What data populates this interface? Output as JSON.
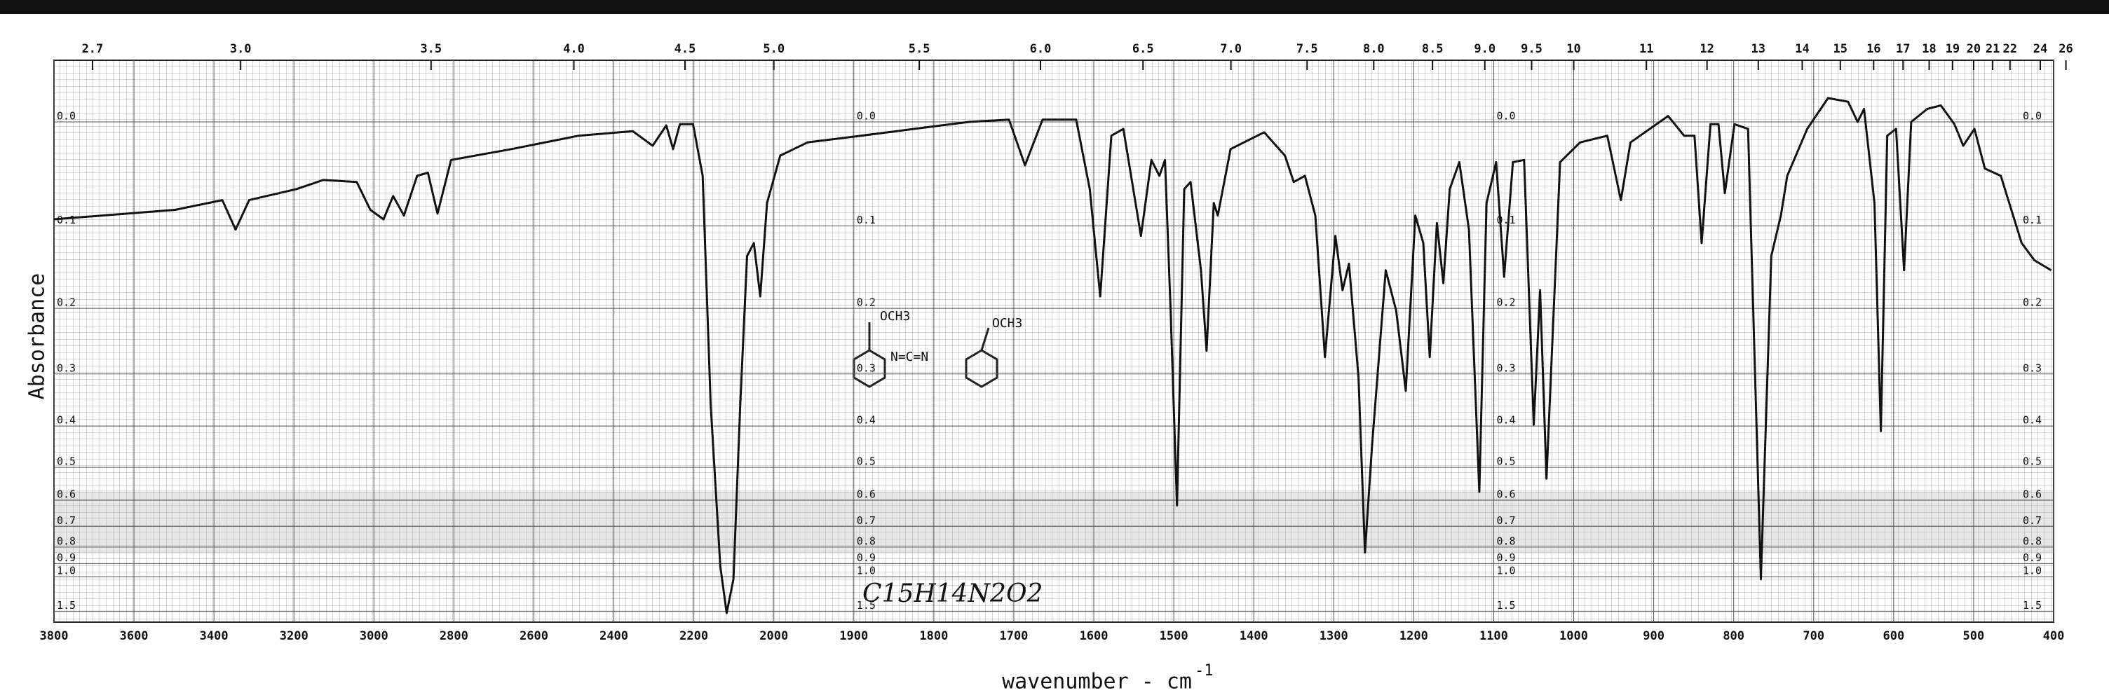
{
  "chart_data": {
    "type": "line",
    "y_label": "Absorbance",
    "x_label": "wavenumber - cm",
    "x_label_exponent": "-1",
    "annotation": "C15H14N2O2",
    "structure_labels": [
      "OCH3",
      "N=C=N",
      "OCH3"
    ],
    "color": "#111111",
    "xlim": [
      3800,
      400
    ],
    "x_scale_change": {
      "at": 2000,
      "factor": 2
    },
    "xticks": [
      3800,
      3600,
      3400,
      3200,
      3000,
      2800,
      2600,
      2400,
      2200,
      2000,
      1900,
      1800,
      1700,
      1600,
      1500,
      1400,
      1300,
      1200,
      1100,
      1000,
      900,
      800,
      700,
      600,
      500,
      400
    ],
    "top_axis_label_unit": "micrometers",
    "top_xticks": [
      2.7,
      {
        "value": 3,
        "label": "3.0"
      },
      3.5,
      {
        "value": 4,
        "label": "4.0"
      },
      4.5,
      {
        "value": 5,
        "label": "5.0"
      },
      5.5,
      {
        "value": 6,
        "label": "6.0"
      },
      6.5,
      {
        "value": 7,
        "label": "7.0"
      },
      7.5,
      {
        "value": 8,
        "label": "8.0"
      },
      8.5,
      {
        "value": 9,
        "label": "9.0"
      },
      9.5,
      10,
      11,
      12,
      13,
      14,
      15,
      16,
      17,
      18,
      19,
      20,
      21,
      22,
      24,
      26
    ],
    "yscale": "transmittance-linear",
    "ylim": [
      -0.05,
      2
    ],
    "yticks": [
      {
        "value": 0,
        "label": "0.0"
      },
      0.1,
      0.2,
      0.3,
      0.4,
      0.5,
      0.6,
      0.7,
      0.8,
      0.9,
      {
        "value": 1,
        "label": "1.0"
      },
      1.5
    ],
    "grid": true,
    "x": [
      3800,
      3497,
      3379,
      3346,
      3312,
      3194,
      3127,
      3043,
      3009,
      2976,
      2952,
      2925,
      2892,
      2865,
      2841,
      2807,
      2656,
      2488,
      2353,
      2303,
      2269,
      2252,
      2235,
      2202,
      2178,
      2158,
      2134,
      2118,
      2101,
      2084,
      2067,
      2050,
      2034,
      2017,
      1992,
      1958,
      1891,
      1824,
      1756,
      1706,
      1686,
      1664,
      1622,
      1605,
      1592,
      1578,
      1563,
      1541,
      1528,
      1518,
      1511,
      1504,
      1496,
      1487,
      1479,
      1466,
      1459,
      1450,
      1445,
      1429,
      1387,
      1361,
      1350,
      1336,
      1323,
      1311,
      1298,
      1289,
      1281,
      1269,
      1261,
      1252,
      1235,
      1222,
      1210,
      1198,
      1188,
      1180,
      1171,
      1163,
      1155,
      1143,
      1131,
      1118,
      1109,
      1097,
      1087,
      1076,
      1062,
      1050,
      1042,
      1034,
      1017,
      992,
      958,
      941,
      929,
      882,
      862,
      849,
      840,
      829,
      819,
      811,
      799,
      782,
      766,
      753,
      741,
      733,
      708,
      682,
      657,
      645,
      637,
      624,
      616,
      608,
      597,
      587,
      578,
      558,
      541,
      524,
      513,
      499,
      486,
      466,
      440,
      424,
      403
    ],
    "values": [
      0.093,
      0.083,
      0.073,
      0.104,
      0.073,
      0.062,
      0.053,
      0.055,
      0.083,
      0.093,
      0.069,
      0.089,
      0.049,
      0.046,
      0.087,
      0.034,
      0.024,
      0.012,
      0.008,
      0.021,
      0.003,
      0.024,
      0.002,
      0.002,
      0.049,
      0.356,
      0.917,
      1.553,
      1.022,
      0.356,
      0.134,
      0.119,
      0.184,
      0.076,
      0.03,
      0.018,
      0.012,
      0.006,
      0,
      -0.002,
      0.039,
      -0.002,
      -0.002,
      0.062,
      0.184,
      0.012,
      0.006,
      0.111,
      0.034,
      0.049,
      0.034,
      0.203,
      0.618,
      0.062,
      0.055,
      0.151,
      0.262,
      0.076,
      0.089,
      0.024,
      0.009,
      0.03,
      0.055,
      0.049,
      0.089,
      0.272,
      0.111,
      0.176,
      0.143,
      0.306,
      0.83,
      0.442,
      0.151,
      0.203,
      0.33,
      0.089,
      0.119,
      0.272,
      0.097,
      0.167,
      0.062,
      0.036,
      0.104,
      0.572,
      0.076,
      0.036,
      0.159,
      0.036,
      0.034,
      0.397,
      0.176,
      0.532,
      0.036,
      0.018,
      0.012,
      0.073,
      0.018,
      -0.005,
      0.012,
      0.012,
      0.119,
      0.002,
      0.002,
      0.066,
      0.002,
      0.006,
      1.022,
      0.134,
      0.089,
      0.049,
      0.006,
      -0.02,
      -0.017,
      0,
      -0.011,
      0.076,
      0.411,
      0.012,
      0.006,
      0.151,
      0,
      -0.011,
      -0.014,
      0.002,
      0.021,
      0.006,
      0.042,
      0.049,
      0.119,
      0.139,
      0.151
    ]
  }
}
